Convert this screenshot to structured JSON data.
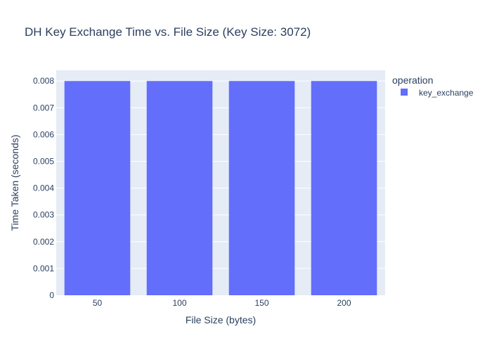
{
  "chart_data": {
    "type": "bar",
    "title": "DH Key Exchange Time vs. File Size (Key Size: 3072)",
    "xlabel": "File Size (bytes)",
    "ylabel": "Time Taken (seconds)",
    "categories": [
      "50",
      "100",
      "150",
      "200"
    ],
    "ylim": [
      0,
      0.0084
    ],
    "yticks": [
      "0",
      "0.001",
      "0.002",
      "0.003",
      "0.004",
      "0.005",
      "0.006",
      "0.007",
      "0.008"
    ],
    "grid": true,
    "legend": {
      "title": "operation",
      "placement": "top-right"
    },
    "series": [
      {
        "name": "key_exchange",
        "color": "#636efa",
        "values": [
          0.008,
          0.008,
          0.008,
          0.008
        ]
      }
    ]
  },
  "colors": {
    "plot_background": "#e5ecf6",
    "gridline": "#ffffff",
    "text": "#2a3f5f",
    "bar": "#636efa"
  }
}
